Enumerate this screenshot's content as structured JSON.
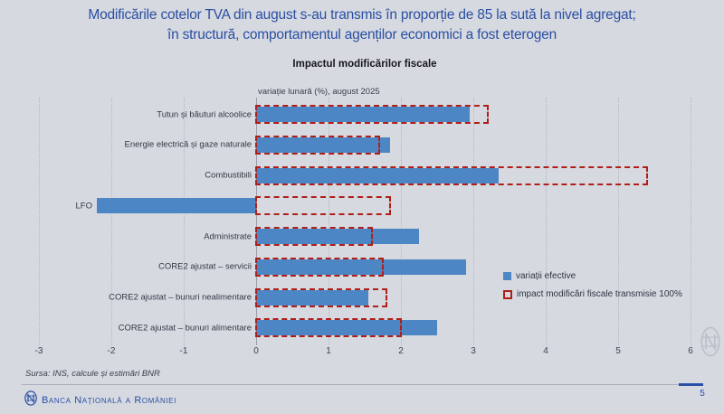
{
  "slide": {
    "title_line1": "Modificările cotelor TVA din august s-au transmis în proporție de 85 la sută la nivel agregat;",
    "title_line2": "în structură, comportamentul agenților economici a fost eterogen",
    "source": "Sursa: INS, calcule și estimări BNR",
    "footer_brand": "Banca Națională a României",
    "page_number": "5"
  },
  "chart_data": {
    "type": "bar",
    "orientation": "horizontal",
    "title": "Impactul modificărilor fiscale",
    "subtitle": "variație lunară (%), august 2025",
    "categories": [
      "Tutun și băuturi alcoolice",
      "Energie electrică și gaze naturale",
      "Combustibili",
      "LFO",
      "Administrate",
      "CORE2 ajustat – servicii",
      "CORE2 ajustat – bunuri nealimentare",
      "CORE2 ajustat – bunuri alimentare"
    ],
    "series": [
      {
        "name": "variații efective",
        "style": "solid-bar",
        "color": "#4d86c4",
        "values": [
          2.95,
          1.85,
          3.35,
          -2.2,
          2.25,
          2.9,
          1.55,
          2.5
        ]
      },
      {
        "name": "impact modificări fiscale transmisie 100%",
        "style": "dashed-outline",
        "color": "#b01e18",
        "values": [
          3.2,
          1.7,
          5.4,
          1.85,
          1.6,
          1.75,
          1.8,
          2.0
        ]
      }
    ],
    "xlim": [
      -3,
      6
    ],
    "xticks": [
      -3,
      -2,
      -1,
      0,
      1,
      2,
      3,
      4,
      5,
      6
    ],
    "grid": "vertical-dotted",
    "legend_position": "middle-right"
  },
  "colors": {
    "background": "#d6d9e0",
    "accent_blue": "#2b4fa3",
    "bar_blue": "#4d86c4",
    "impact_red": "#b01e18"
  }
}
